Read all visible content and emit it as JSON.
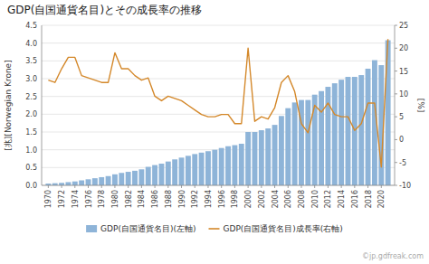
{
  "chart_data": {
    "type": "bar",
    "title": "GDP(自国通貨名目)とその成長率の推移",
    "ylabel": "[兆][Norwegian Krone]",
    "y2label": "[%]",
    "annotations": [
      "©jp.gdfreak.com"
    ],
    "x": [
      1970,
      1971,
      1972,
      1973,
      1974,
      1975,
      1976,
      1977,
      1978,
      1979,
      1980,
      1981,
      1982,
      1983,
      1984,
      1985,
      1986,
      1987,
      1988,
      1989,
      1990,
      1991,
      1992,
      1993,
      1994,
      1995,
      1996,
      1997,
      1998,
      1999,
      2000,
      2001,
      2002,
      2003,
      2004,
      2005,
      2006,
      2007,
      2008,
      2009,
      2010,
      2011,
      2012,
      2013,
      2014,
      2015,
      2016,
      2017,
      2018,
      2019,
      2020,
      2021
    ],
    "xlim": [
      1969,
      2022
    ],
    "xticks": [
      1970,
      1972,
      1974,
      1976,
      1978,
      1980,
      1982,
      1984,
      1986,
      1988,
      1990,
      1992,
      1994,
      1996,
      1998,
      2000,
      2002,
      2004,
      2006,
      2008,
      2010,
      2012,
      2014,
      2016,
      2018,
      2020
    ],
    "series": [
      {
        "name": "GDP(自国通貨名目)(左軸)",
        "type": "bar",
        "color": "#8EB4D8",
        "values": [
          0.05,
          0.06,
          0.07,
          0.09,
          0.11,
          0.14,
          0.17,
          0.2,
          0.23,
          0.26,
          0.31,
          0.35,
          0.38,
          0.41,
          0.45,
          0.52,
          0.57,
          0.61,
          0.67,
          0.73,
          0.78,
          0.83,
          0.88,
          0.92,
          0.96,
          1.0,
          1.05,
          1.1,
          1.13,
          1.17,
          1.5,
          1.5,
          1.55,
          1.6,
          1.7,
          1.95,
          2.17,
          2.33,
          2.4,
          2.4,
          2.55,
          2.65,
          2.77,
          2.87,
          2.97,
          3.05,
          3.05,
          3.1,
          3.28,
          3.52,
          3.38,
          4.08
        ]
      },
      {
        "name": "GDP(自国通貨名目)成長率(右軸)",
        "type": "line",
        "axis": "y2",
        "color": "#D4882A",
        "values": [
          13.0,
          12.5,
          15.5,
          18.0,
          18.0,
          14.0,
          13.5,
          13.0,
          12.5,
          12.5,
          19.0,
          15.5,
          15.5,
          14.0,
          13.0,
          13.5,
          9.5,
          8.5,
          9.5,
          9.0,
          8.5,
          7.5,
          6.5,
          5.5,
          5.0,
          5.0,
          5.5,
          5.5,
          3.5,
          3.5,
          20.0,
          4.0,
          5.0,
          4.5,
          7.0,
          12.5,
          14.0,
          10.5,
          3.5,
          1.5,
          7.5,
          6.0,
          8.0,
          5.5,
          5.0,
          5.0,
          2.0,
          3.5,
          8.0,
          8.0,
          -6.0,
          22.0
        ]
      }
    ],
    "ylim": [
      0,
      4.5
    ],
    "yticks": [
      {
        "value": 0,
        "label": "0.0"
      },
      0.5,
      {
        "value": 1,
        "label": "1.0"
      },
      1.5,
      {
        "value": 2,
        "label": "2.0"
      },
      2.5,
      {
        "value": 3,
        "label": "3.0"
      },
      3.5,
      {
        "value": 4,
        "label": "4.0"
      },
      4.5
    ],
    "y2lim": [
      -10,
      25
    ],
    "y2ticks": [
      -10,
      -5,
      0,
      5,
      10,
      15,
      20,
      25
    ],
    "grid": true,
    "legend": "bottom"
  }
}
